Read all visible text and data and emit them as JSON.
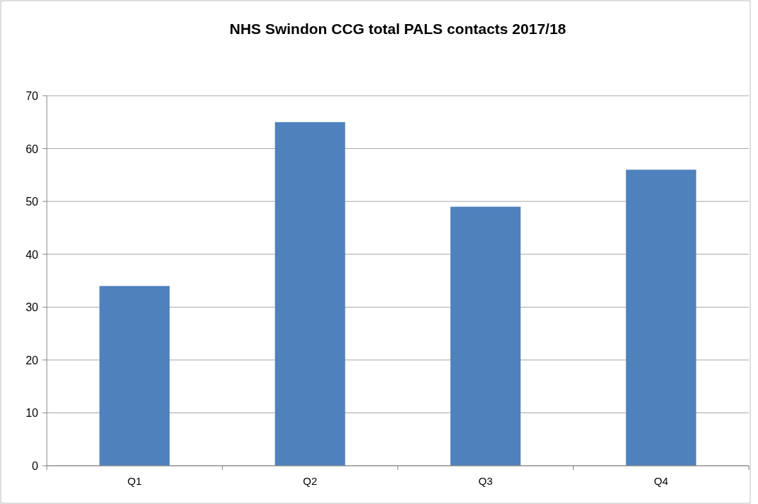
{
  "chart_data": {
    "type": "bar",
    "title": "NHS Swindon CCG total PALS contacts 2017/18",
    "categories": [
      "Q1",
      "Q2",
      "Q3",
      "Q4"
    ],
    "values": [
      34,
      65,
      49,
      56
    ],
    "color": "#4f81bd",
    "ylim": [
      0,
      70
    ],
    "yticks": [
      0,
      10,
      20,
      30,
      40,
      50,
      60,
      70
    ],
    "grid": "y"
  }
}
